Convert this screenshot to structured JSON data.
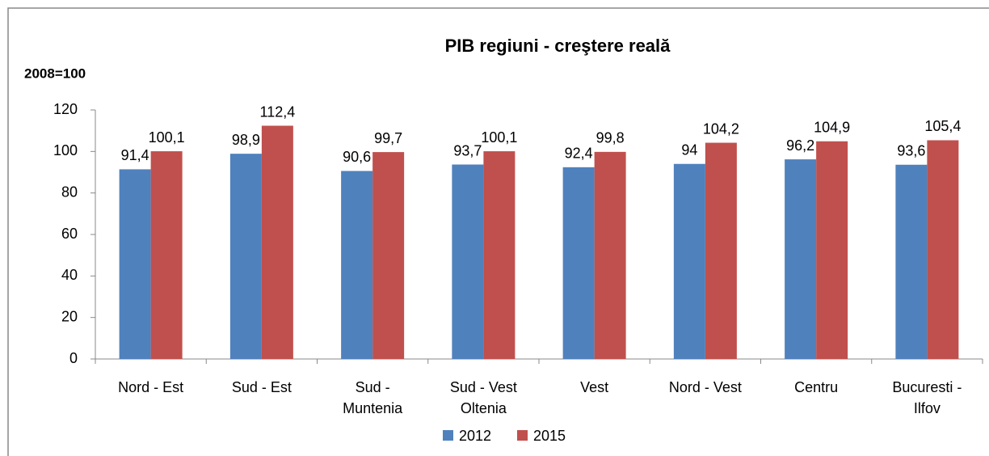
{
  "chart_data": {
    "type": "bar",
    "title": "PIB regiuni - creştere reală",
    "unit_label": "2008=100",
    "categories": [
      [
        "Nord - Est"
      ],
      [
        "Sud - Est"
      ],
      [
        "Sud -",
        "Muntenia"
      ],
      [
        "Sud - Vest",
        "Oltenia"
      ],
      [
        "Vest"
      ],
      [
        "Nord - Vest"
      ],
      [
        "Centru"
      ],
      [
        "Bucuresti -",
        "Ilfov"
      ]
    ],
    "series": [
      {
        "name": "2012",
        "color": "#4f81bd",
        "values": [
          91.4,
          98.9,
          90.6,
          93.7,
          92.4,
          94,
          96.2,
          93.6
        ],
        "value_labels": [
          "91,4",
          "98,9",
          "90,6",
          "93,7",
          "92,4",
          "94",
          "96,2",
          "93,6"
        ]
      },
      {
        "name": "2015",
        "color": "#c0504d",
        "values": [
          100.1,
          112.4,
          99.7,
          100.1,
          99.8,
          104.2,
          104.9,
          105.4
        ],
        "value_labels": [
          "100,1",
          "112,4",
          "99,7",
          "100,1",
          "99,8",
          "104,2",
          "104,9",
          "105,4"
        ]
      }
    ],
    "ylim": [
      0,
      120
    ],
    "yticks": [
      0,
      20,
      40,
      60,
      80,
      100,
      120
    ],
    "grid": false,
    "legend": "bottom"
  }
}
